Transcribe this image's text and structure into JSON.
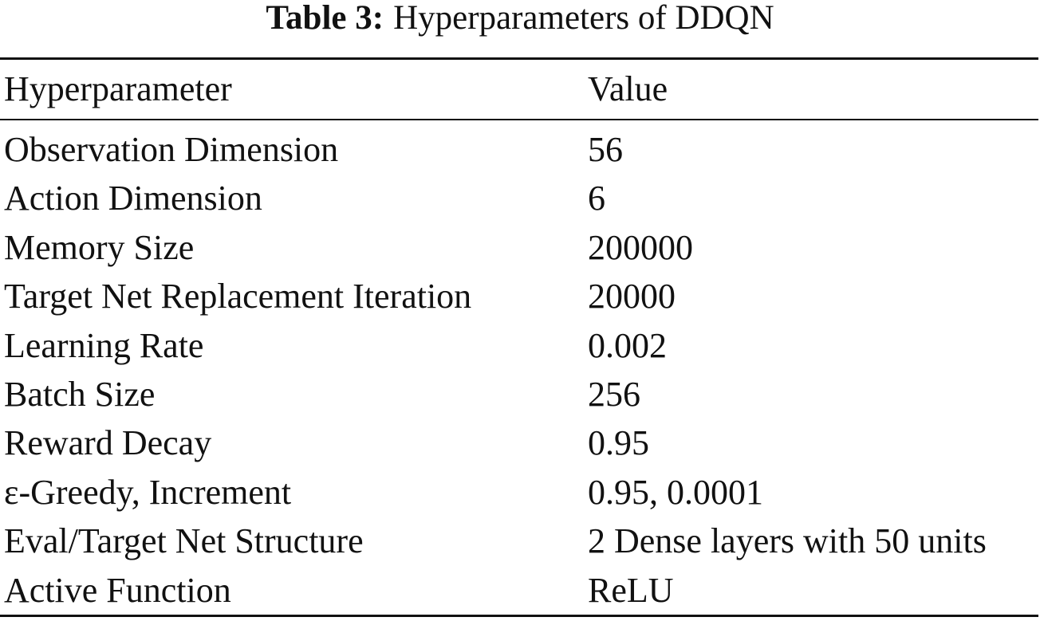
{
  "title": {
    "label": "Table 3:",
    "text": "Hyperparameters of DDQN"
  },
  "table": {
    "header": [
      "Hyperparameter",
      "Value"
    ],
    "rows": [
      [
        "Observation Dimension",
        "56"
      ],
      [
        "Action Dimension",
        "6"
      ],
      [
        "Memory Size",
        "200000"
      ],
      [
        "Target Net Replacement Iteration",
        "20000"
      ],
      [
        "Learning Rate",
        "0.002"
      ],
      [
        "Batch Size",
        "256"
      ],
      [
        "Reward Decay",
        "0.95"
      ],
      [
        "ε-Greedy, Increment",
        "0.95, 0.0001"
      ],
      [
        "Eval/Target Net Structure",
        "2 Dense layers with 50 units"
      ],
      [
        "Active Function",
        "ReLU"
      ]
    ]
  }
}
